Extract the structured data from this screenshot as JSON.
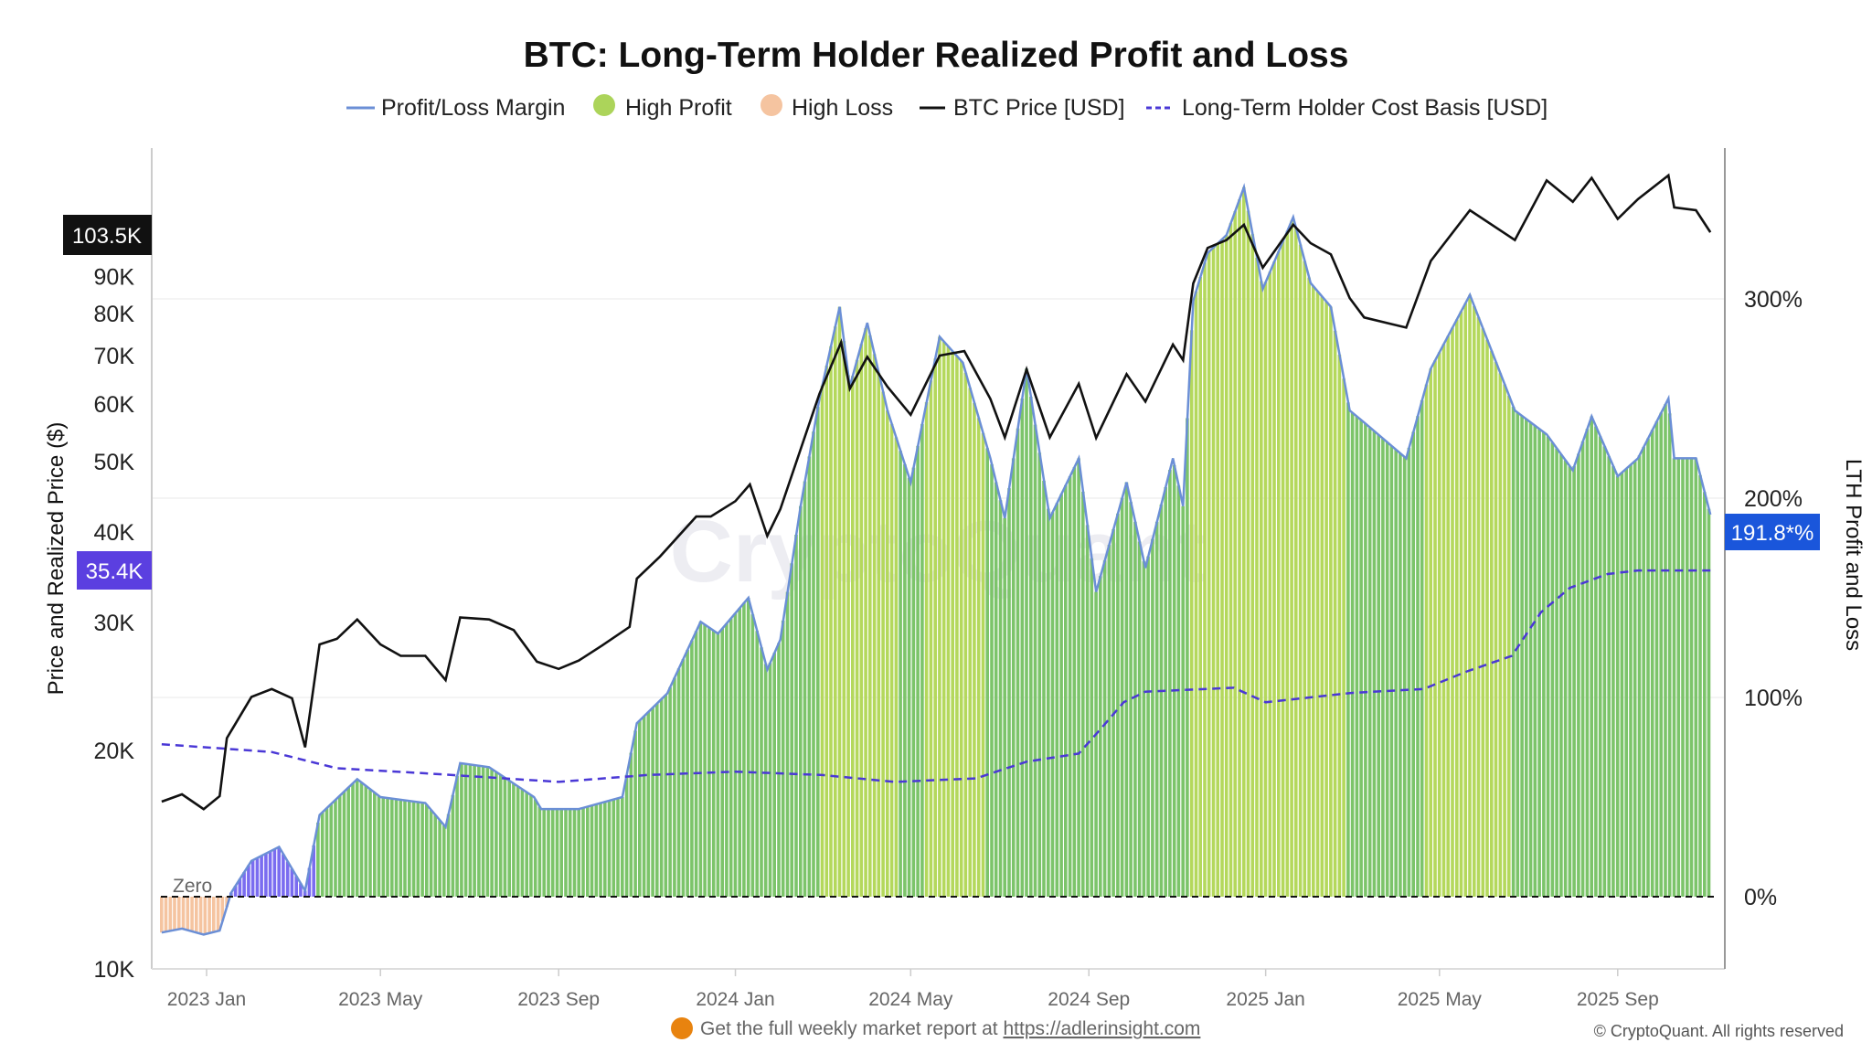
{
  "chart_data": {
    "type": "bar+line",
    "title": "BTC: Long-Term Holder Realized Profit and Loss",
    "legend": {
      "placement": "top-center",
      "items": [
        {
          "label": "Profit/Loss Margin",
          "color": "#6b8fd6",
          "style": "line"
        },
        {
          "label": "High Profit",
          "color": "#acd45a",
          "style": "dot"
        },
        {
          "label": "High Loss",
          "color": "#f5c4a0",
          "style": "dot"
        },
        {
          "label": "BTC Price [USD]",
          "color": "#111111",
          "style": "line"
        },
        {
          "label": "Long-Term Holder Cost Basis [USD]",
          "color": "#4a38d6",
          "style": "dashed"
        }
      ]
    },
    "left_axis": {
      "label": "Price and Realized Price ($)",
      "scale": "log",
      "range": [
        10000,
        130000
      ],
      "ticks": [
        {
          "v": 10000,
          "t": "10K"
        },
        {
          "v": 20000,
          "t": "20K"
        },
        {
          "v": 30000,
          "t": "30K"
        },
        {
          "v": 40000,
          "t": "40K"
        },
        {
          "v": 50000,
          "t": "50K"
        },
        {
          "v": 60000,
          "t": "60K"
        },
        {
          "v": 70000,
          "t": "70K"
        },
        {
          "v": 80000,
          "t": "80K"
        },
        {
          "v": 90000,
          "t": "90K"
        }
      ]
    },
    "right_axis": {
      "label": "LTH Profit and Loss",
      "scale": "linear",
      "range": [
        -37,
        375
      ],
      "ticks": [
        {
          "v": 0,
          "t": "0%"
        },
        {
          "v": 100,
          "t": "100%"
        },
        {
          "v": 200,
          "t": "200%"
        },
        {
          "v": 300,
          "t": "300%"
        }
      ]
    },
    "x_axis": {
      "range": [
        "2022-12-01",
        "2025-11-04"
      ],
      "ticks": [
        {
          "d": "2023-01-01",
          "t": "2023 Jan"
        },
        {
          "d": "2023-05-01",
          "t": "2023 May"
        },
        {
          "d": "2023-09-01",
          "t": "2023 Sep"
        },
        {
          "d": "2024-01-01",
          "t": "2024 Jan"
        },
        {
          "d": "2024-05-01",
          "t": "2024 May"
        },
        {
          "d": "2024-09-01",
          "t": "2024 Sep"
        },
        {
          "d": "2025-01-01",
          "t": "2025 Jan"
        },
        {
          "d": "2025-05-01",
          "t": "2025 May"
        },
        {
          "d": "2025-09-01",
          "t": "2025 Sep"
        }
      ]
    },
    "grid": "horizontal",
    "zero_label": "Zero",
    "last_values": {
      "btc_price": "103.5K",
      "cost_basis": "35.4K",
      "margin": "191.8*%"
    },
    "colors": {
      "normal_profit": "#7cc46a",
      "high_profit": "#b4d85c",
      "low_profit": "#7a6cf0",
      "loss": "#f5c4a0",
      "margin_line": "#6b8fd6",
      "price": "#111111",
      "cost_basis": "#4a38d6"
    },
    "profit_regimes": [
      {
        "start": "2023-01-17",
        "end": "2023-03-17",
        "kind": "low_profit"
      },
      {
        "start": "2024-03-01",
        "end": "2024-04-22",
        "kind": "high_profit"
      },
      {
        "start": "2024-05-10",
        "end": "2024-06-22",
        "kind": "high_profit"
      },
      {
        "start": "2024-11-10",
        "end": "2025-02-25",
        "kind": "high_profit"
      },
      {
        "start": "2025-04-20",
        "end": "2025-06-20",
        "kind": "high_profit"
      }
    ],
    "btc_price": [
      [
        "2022-12-01",
        17000
      ],
      [
        "2022-12-15",
        17400
      ],
      [
        "2022-12-30",
        16600
      ],
      [
        "2023-01-10",
        17300
      ],
      [
        "2023-01-15",
        20800
      ],
      [
        "2023-02-01",
        23700
      ],
      [
        "2023-02-15",
        24300
      ],
      [
        "2023-03-01",
        23600
      ],
      [
        "2023-03-10",
        20200
      ],
      [
        "2023-03-20",
        28000
      ],
      [
        "2023-04-01",
        28500
      ],
      [
        "2023-04-15",
        30300
      ],
      [
        "2023-05-01",
        28000
      ],
      [
        "2023-05-15",
        27000
      ],
      [
        "2023-06-01",
        27000
      ],
      [
        "2023-06-15",
        25000
      ],
      [
        "2023-06-25",
        30500
      ],
      [
        "2023-07-15",
        30300
      ],
      [
        "2023-08-01",
        29300
      ],
      [
        "2023-08-17",
        26500
      ],
      [
        "2023-09-01",
        25900
      ],
      [
        "2023-09-15",
        26600
      ],
      [
        "2023-10-01",
        27900
      ],
      [
        "2023-10-20",
        29600
      ],
      [
        "2023-10-25",
        34500
      ],
      [
        "2023-11-10",
        37000
      ],
      [
        "2023-12-05",
        42000
      ],
      [
        "2023-12-15",
        42000
      ],
      [
        "2024-01-01",
        44100
      ],
      [
        "2024-01-11",
        46500
      ],
      [
        "2024-01-23",
        39500
      ],
      [
        "2024-02-01",
        43000
      ],
      [
        "2024-02-15",
        52000
      ],
      [
        "2024-02-28",
        62000
      ],
      [
        "2024-03-14",
        73000
      ],
      [
        "2024-03-20",
        63000
      ],
      [
        "2024-04-01",
        69700
      ],
      [
        "2024-04-15",
        63400
      ],
      [
        "2024-05-01",
        58000
      ],
      [
        "2024-05-21",
        70000
      ],
      [
        "2024-06-07",
        71000
      ],
      [
        "2024-06-25",
        61000
      ],
      [
        "2024-07-05",
        54000
      ],
      [
        "2024-07-20",
        67000
      ],
      [
        "2024-08-05",
        54000
      ],
      [
        "2024-08-25",
        64000
      ],
      [
        "2024-09-06",
        53900
      ],
      [
        "2024-09-27",
        66000
      ],
      [
        "2024-10-10",
        60500
      ],
      [
        "2024-10-29",
        72500
      ],
      [
        "2024-11-05",
        69000
      ],
      [
        "2024-11-12",
        88000
      ],
      [
        "2024-11-22",
        98500
      ],
      [
        "2024-12-05",
        101000
      ],
      [
        "2024-12-17",
        106000
      ],
      [
        "2024-12-30",
        92500
      ],
      [
        "2025-01-20",
        106000
      ],
      [
        "2025-02-01",
        100000
      ],
      [
        "2025-02-15",
        96500
      ],
      [
        "2025-02-28",
        84000
      ],
      [
        "2025-03-10",
        79000
      ],
      [
        "2025-04-08",
        76500
      ],
      [
        "2025-04-25",
        94500
      ],
      [
        "2025-05-22",
        111000
      ],
      [
        "2025-06-22",
        101000
      ],
      [
        "2025-07-14",
        122000
      ],
      [
        "2025-08-01",
        114000
      ],
      [
        "2025-08-14",
        123000
      ],
      [
        "2025-09-01",
        108000
      ],
      [
        "2025-09-15",
        115000
      ],
      [
        "2025-10-06",
        124000
      ],
      [
        "2025-10-10",
        112000
      ],
      [
        "2025-10-25",
        111000
      ],
      [
        "2025-11-04",
        103500
      ]
    ],
    "profit_loss_margin_pct": [
      [
        "2022-12-01",
        -18
      ],
      [
        "2022-12-15",
        -16
      ],
      [
        "2022-12-30",
        -19
      ],
      [
        "2023-01-10",
        -17
      ],
      [
        "2023-01-18",
        2
      ],
      [
        "2023-02-01",
        18
      ],
      [
        "2023-02-20",
        25
      ],
      [
        "2023-03-10",
        3
      ],
      [
        "2023-03-20",
        41
      ],
      [
        "2023-04-15",
        59
      ],
      [
        "2023-05-01",
        50
      ],
      [
        "2023-06-01",
        47
      ],
      [
        "2023-06-15",
        35
      ],
      [
        "2023-06-25",
        67
      ],
      [
        "2023-07-15",
        65
      ],
      [
        "2023-08-15",
        50
      ],
      [
        "2023-08-20",
        44
      ],
      [
        "2023-09-15",
        44
      ],
      [
        "2023-10-15",
        50
      ],
      [
        "2023-10-25",
        87
      ],
      [
        "2023-11-15",
        102
      ],
      [
        "2023-12-08",
        138
      ],
      [
        "2023-12-20",
        132
      ],
      [
        "2024-01-10",
        150
      ],
      [
        "2024-01-23",
        114
      ],
      [
        "2024-02-01",
        129
      ],
      [
        "2024-02-15",
        196
      ],
      [
        "2024-02-28",
        250
      ],
      [
        "2024-03-13",
        296
      ],
      [
        "2024-03-20",
        256
      ],
      [
        "2024-04-01",
        288
      ],
      [
        "2024-04-15",
        244
      ],
      [
        "2024-05-01",
        208
      ],
      [
        "2024-05-21",
        281
      ],
      [
        "2024-06-06",
        268
      ],
      [
        "2024-06-25",
        220
      ],
      [
        "2024-07-05",
        190
      ],
      [
        "2024-07-20",
        265
      ],
      [
        "2024-08-05",
        190
      ],
      [
        "2024-08-25",
        220
      ],
      [
        "2024-09-06",
        153
      ],
      [
        "2024-09-27",
        208
      ],
      [
        "2024-10-10",
        165
      ],
      [
        "2024-10-29",
        220
      ],
      [
        "2024-11-05",
        196
      ],
      [
        "2024-11-12",
        299
      ],
      [
        "2024-11-22",
        323
      ],
      [
        "2024-12-05",
        332
      ],
      [
        "2024-12-17",
        356
      ],
      [
        "2024-12-30",
        305
      ],
      [
        "2025-01-20",
        341
      ],
      [
        "2025-02-01",
        308
      ],
      [
        "2025-02-15",
        296
      ],
      [
        "2025-02-28",
        244
      ],
      [
        "2025-03-10",
        238
      ],
      [
        "2025-04-08",
        220
      ],
      [
        "2025-04-25",
        265
      ],
      [
        "2025-05-22",
        302
      ],
      [
        "2025-06-22",
        244
      ],
      [
        "2025-07-14",
        232
      ],
      [
        "2025-08-01",
        214
      ],
      [
        "2025-08-14",
        241
      ],
      [
        "2025-09-01",
        211
      ],
      [
        "2025-09-15",
        220
      ],
      [
        "2025-10-06",
        250
      ],
      [
        "2025-10-10",
        220
      ],
      [
        "2025-10-25",
        220
      ],
      [
        "2025-11-04",
        191.8
      ]
    ],
    "lth_cost_basis": [
      [
        "2022-12-01",
        20400
      ],
      [
        "2023-02-15",
        19900
      ],
      [
        "2023-04-01",
        18900
      ],
      [
        "2023-06-01",
        18600
      ],
      [
        "2023-09-01",
        18100
      ],
      [
        "2023-11-01",
        18500
      ],
      [
        "2024-01-01",
        18700
      ],
      [
        "2024-03-01",
        18500
      ],
      [
        "2024-04-20",
        18100
      ],
      [
        "2024-06-15",
        18300
      ],
      [
        "2024-07-20",
        19300
      ],
      [
        "2024-08-25",
        19800
      ],
      [
        "2024-09-10",
        21500
      ],
      [
        "2024-09-25",
        23300
      ],
      [
        "2024-10-10",
        24100
      ],
      [
        "2024-12-10",
        24400
      ],
      [
        "2025-01-01",
        23300
      ],
      [
        "2025-03-01",
        24000
      ],
      [
        "2025-04-20",
        24300
      ],
      [
        "2025-05-20",
        25700
      ],
      [
        "2025-06-20",
        27000
      ],
      [
        "2025-07-10",
        31000
      ],
      [
        "2025-07-30",
        33500
      ],
      [
        "2025-08-25",
        35000
      ],
      [
        "2025-09-15",
        35400
      ],
      [
        "2025-11-04",
        35400
      ]
    ]
  },
  "footer": {
    "promo_text": "Get the full weekly market report at ",
    "promo_link": "https://adlerinsight.com",
    "copyright": "© CryptoQuant. All rights reserved"
  },
  "watermark": "CryptoQuant"
}
